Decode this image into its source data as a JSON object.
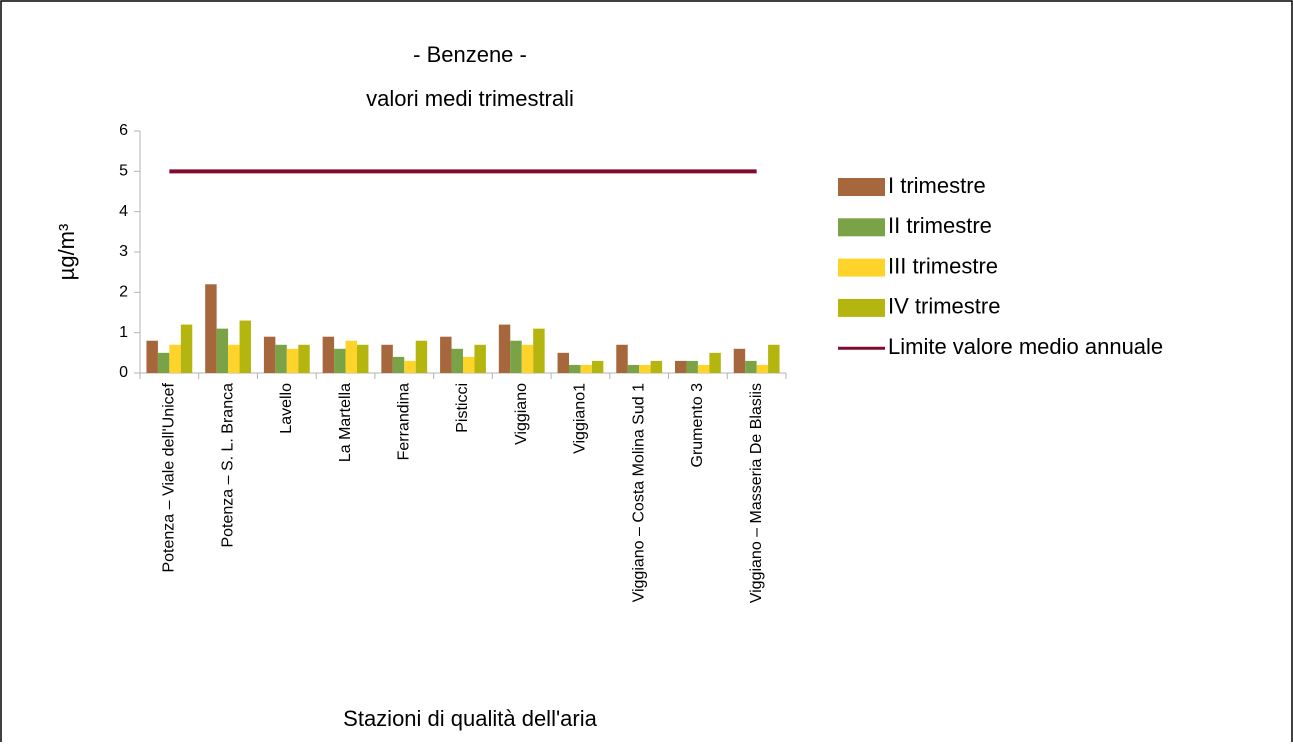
{
  "chart_data": {
    "type": "bar",
    "title": "- Benzene -",
    "subtitle": "valori medi trimestrali",
    "x_label": "Stazioni di qualità dell'aria",
    "y_label": "µg/m³",
    "categories": [
      "Potenza – Viale dell'Unicef",
      "Potenza – S. L. Branca",
      "Lavello",
      "La Martella",
      "Ferrandina",
      "Pisticci",
      "Viggiano",
      "Viggiano1",
      "Viggiano – Costa Molina Sud 1",
      "Grumento 3",
      "Viggiano – Masseria De Blasiis"
    ],
    "series": [
      {
        "name": "I trimestre",
        "color": "#a5673b",
        "values": [
          0.8,
          2.2,
          0.9,
          0.9,
          0.7,
          0.9,
          1.2,
          0.5,
          0.7,
          0.3,
          0.6
        ]
      },
      {
        "name": "II trimestre",
        "color": "#7aa348",
        "values": [
          0.5,
          1.1,
          0.7,
          0.6,
          0.4,
          0.6,
          0.8,
          0.2,
          0.2,
          0.3,
          0.3
        ]
      },
      {
        "name": "III trimestre",
        "color": "#ffd42a",
        "values": [
          0.7,
          0.7,
          0.6,
          0.8,
          0.3,
          0.4,
          0.7,
          0.2,
          0.2,
          0.2,
          0.2
        ]
      },
      {
        "name": "IV trimestre",
        "color": "#b5b50f",
        "values": [
          1.2,
          1.3,
          0.7,
          0.7,
          0.8,
          0.7,
          1.1,
          0.3,
          0.3,
          0.5,
          0.7
        ]
      },
      {
        "name": "Limite valore medio annuale",
        "color": "#7f0b2e",
        "type": "line",
        "values": [
          5,
          5,
          5,
          5,
          5,
          5,
          5,
          5,
          5,
          5,
          5
        ]
      }
    ],
    "ylim": [
      0,
      6
    ],
    "yticks": [
      0,
      1,
      2,
      3,
      4,
      5,
      6
    ],
    "legend": "right"
  }
}
